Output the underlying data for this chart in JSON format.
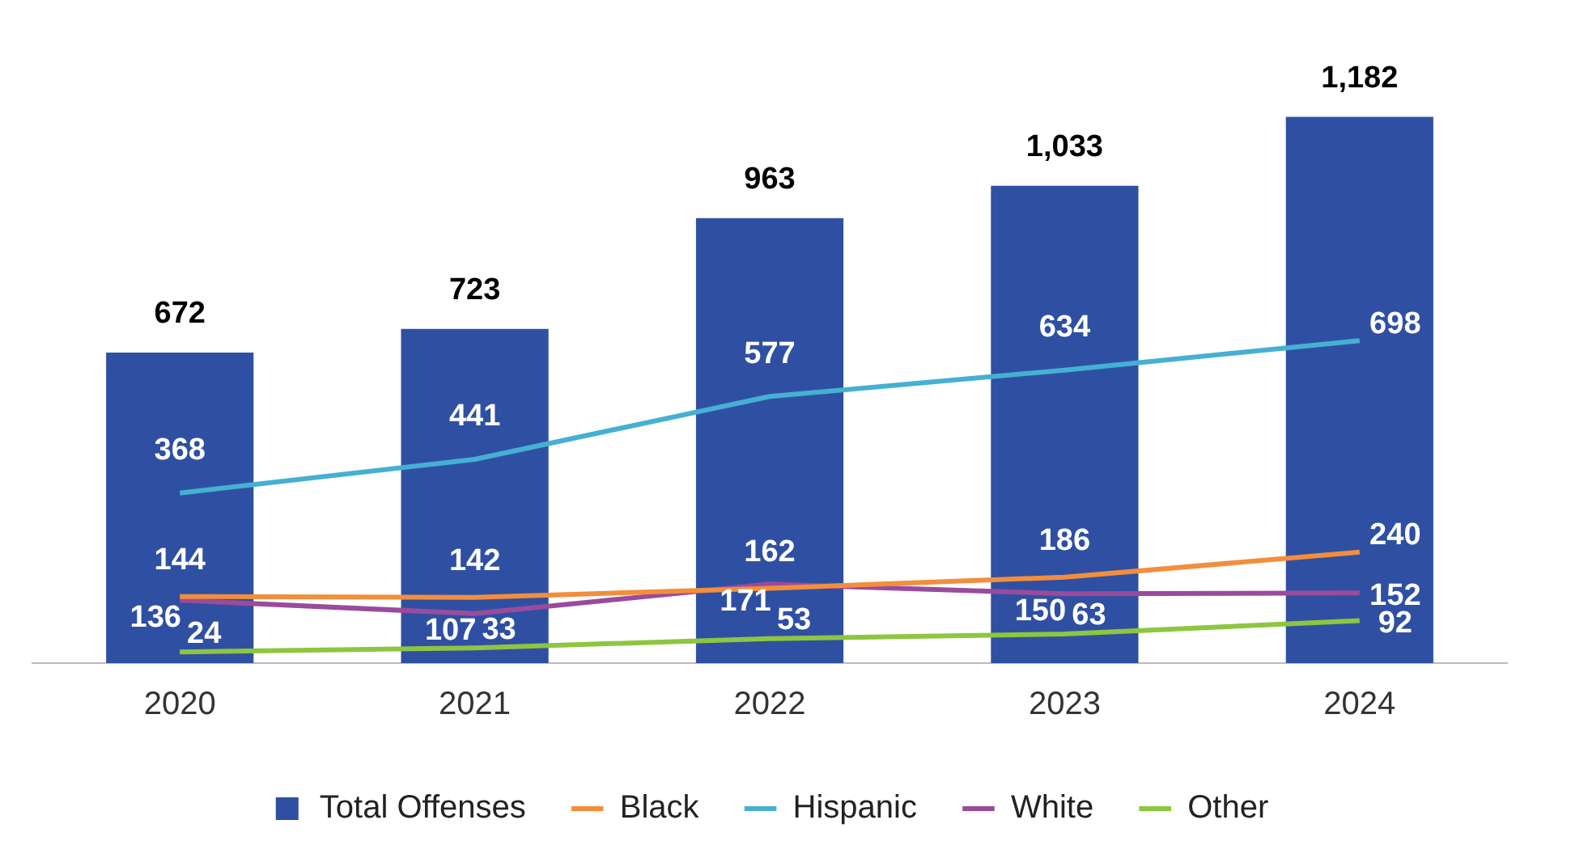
{
  "chart_data": {
    "type": "bar",
    "categories": [
      "2020",
      "2021",
      "2022",
      "2023",
      "2024"
    ],
    "series": [
      {
        "name": "Total Offenses",
        "color": "#2f50a2",
        "values": [
          672,
          723,
          963,
          1033,
          1182
        ],
        "value_labels": [
          "672",
          "723",
          "963",
          "1,033",
          "1,182"
        ]
      },
      {
        "name": "Black",
        "type": "line",
        "color": "#f28e3c",
        "values": [
          144,
          142,
          162,
          186,
          240
        ],
        "value_labels": [
          "144",
          "142",
          "162",
          "186",
          "240"
        ]
      },
      {
        "name": "Hispanic",
        "type": "line",
        "color": "#45b0d2",
        "values": [
          368,
          441,
          577,
          634,
          698
        ],
        "value_labels": [
          "368",
          "441",
          "577",
          "634",
          "698"
        ]
      },
      {
        "name": "White",
        "type": "line",
        "color": "#9a4b9c",
        "values": [
          136,
          107,
          171,
          150,
          152
        ],
        "value_labels": [
          "136",
          "107",
          "171",
          "150",
          "152"
        ]
      },
      {
        "name": "Other",
        "type": "line",
        "color": "#8dc63f",
        "values": [
          24,
          33,
          53,
          63,
          92
        ],
        "value_labels": [
          "24",
          "33",
          "53",
          "63",
          "92"
        ]
      }
    ],
    "legend": "bottom",
    "grid": false,
    "marker": "none",
    "tick_labels": "x"
  }
}
